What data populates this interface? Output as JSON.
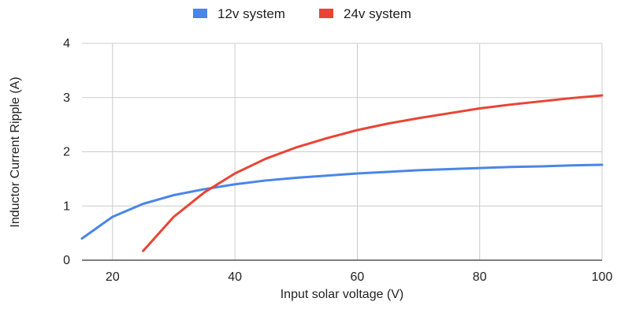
{
  "chart_data": {
    "type": "line",
    "title": "",
    "xlabel": "Input solar voltage (V)",
    "ylabel": "Inductor Current Ripple (A)",
    "xlim": [
      15,
      100
    ],
    "ylim": [
      0,
      4
    ],
    "x_ticks": [
      20,
      40,
      60,
      80,
      100
    ],
    "y_ticks": [
      0,
      1,
      2,
      3,
      4
    ],
    "grid": true,
    "legend_position": "top",
    "series": [
      {
        "name": "12v system",
        "color": "#4a86e8",
        "x": [
          15,
          20,
          25,
          30,
          35,
          40,
          45,
          50,
          55,
          60,
          65,
          70,
          75,
          80,
          85,
          90,
          95,
          100
        ],
        "y": [
          0.4,
          0.8,
          1.04,
          1.2,
          1.31,
          1.4,
          1.47,
          1.52,
          1.56,
          1.6,
          1.63,
          1.66,
          1.68,
          1.7,
          1.72,
          1.73,
          1.75,
          1.76
        ]
      },
      {
        "name": "24v system",
        "color": "#e94435",
        "x": [
          25,
          30,
          35,
          40,
          45,
          50,
          55,
          60,
          65,
          70,
          75,
          80,
          85,
          90,
          95,
          100
        ],
        "y": [
          0.17,
          0.8,
          1.25,
          1.6,
          1.87,
          2.08,
          2.25,
          2.4,
          2.52,
          2.62,
          2.71,
          2.8,
          2.87,
          2.93,
          2.99,
          3.04
        ]
      }
    ]
  }
}
